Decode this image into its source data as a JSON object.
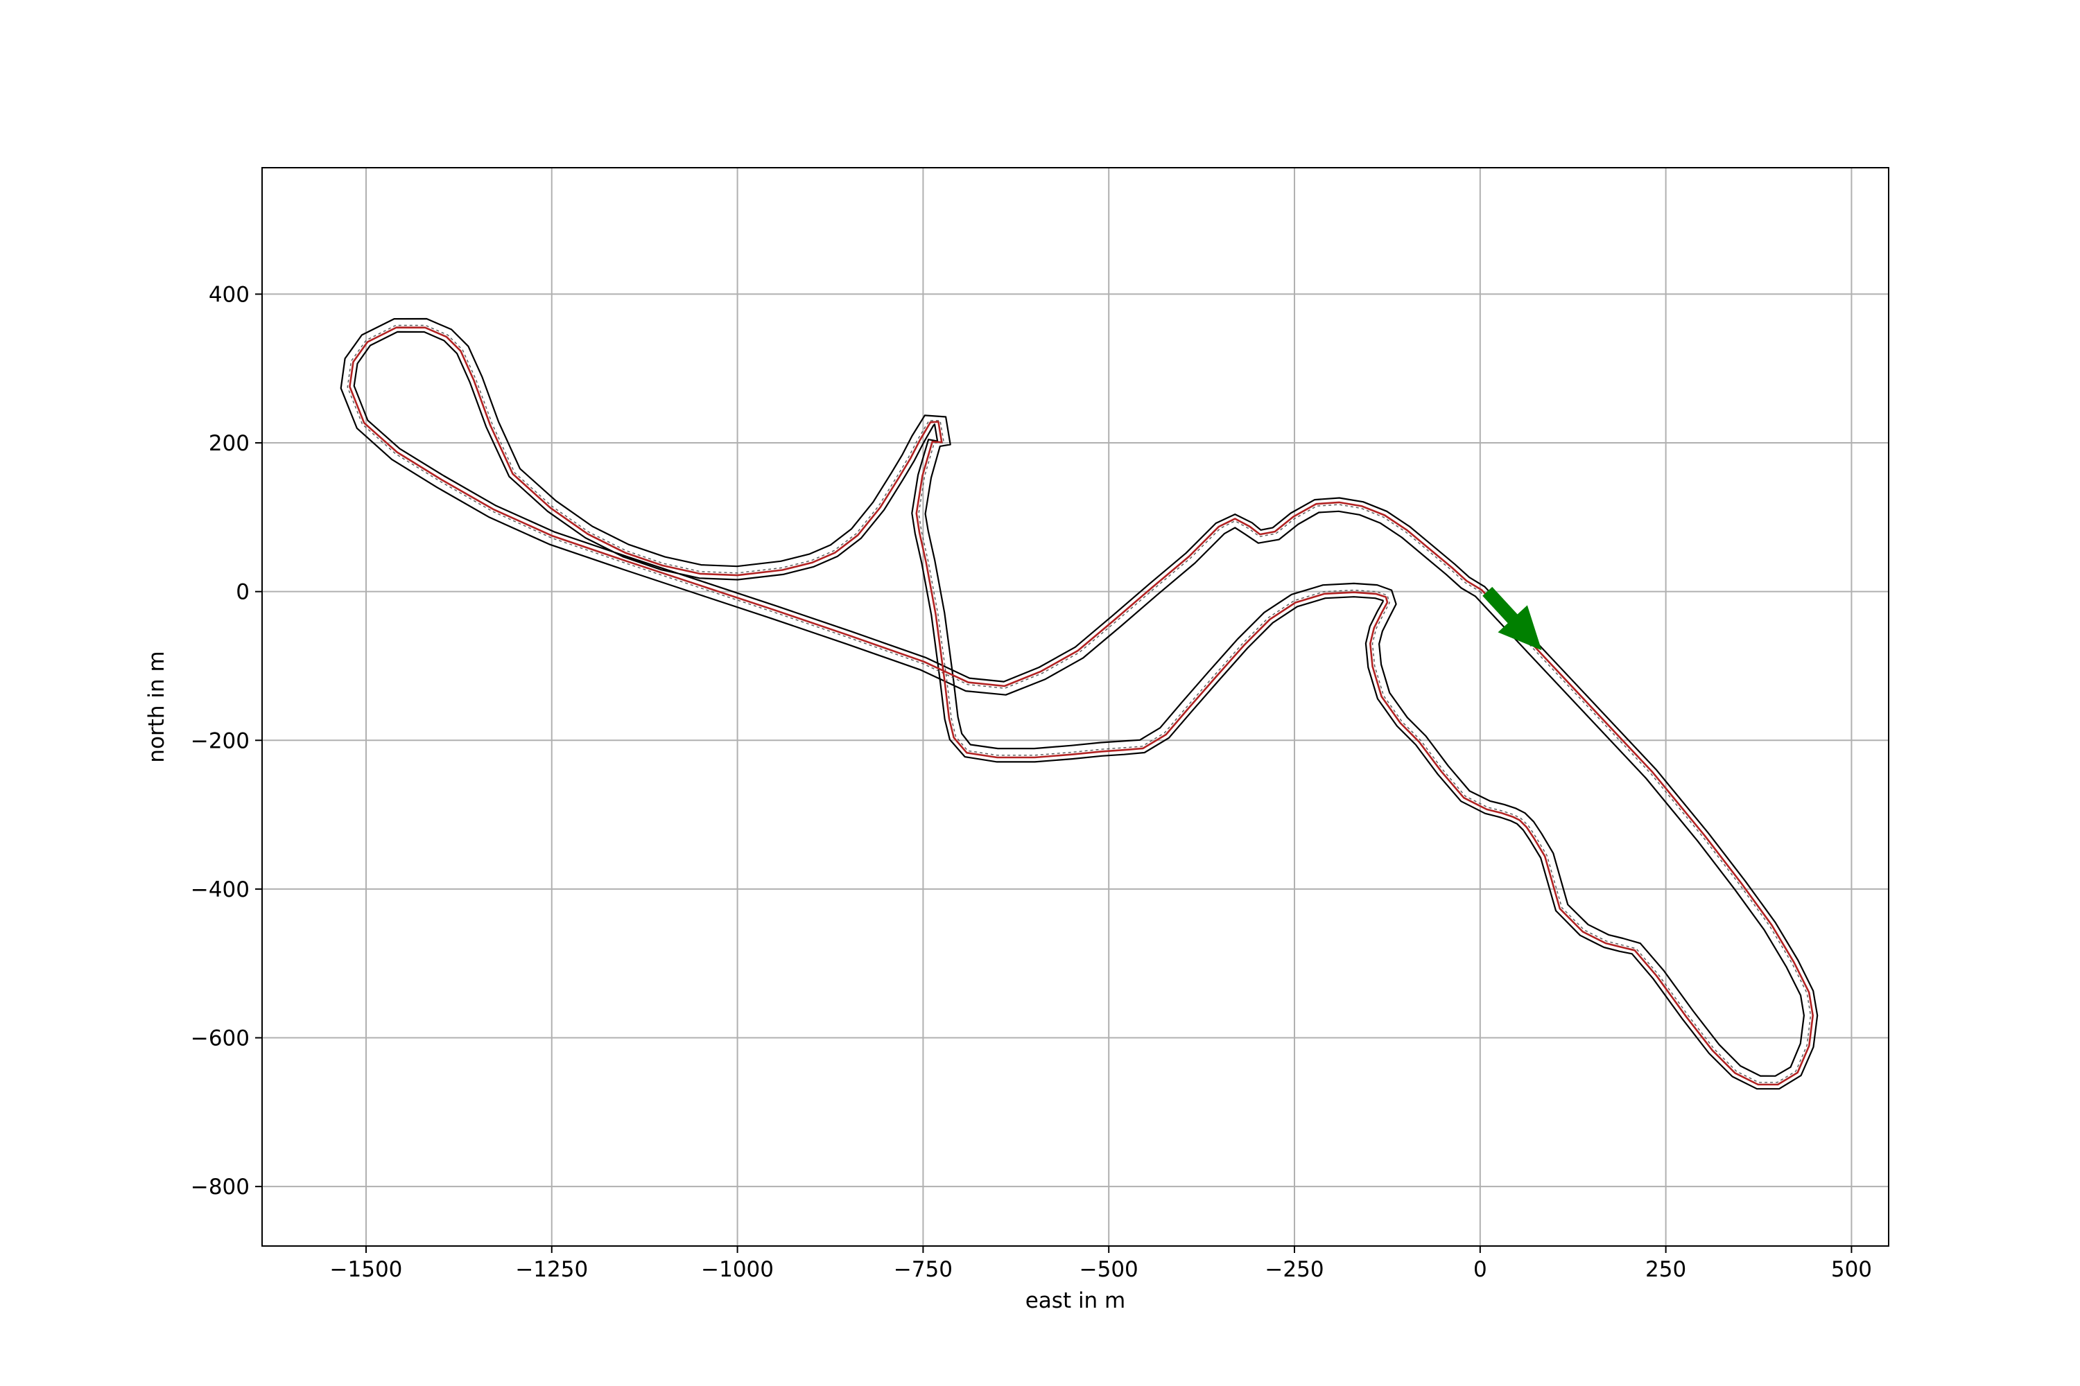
{
  "chart_data": {
    "type": "line",
    "title": "",
    "xlabel": "east in m",
    "ylabel": "north in m",
    "xlim": [
      -1640,
      550
    ],
    "ylim": [
      -880,
      570
    ],
    "grid": true,
    "aspect": "equal",
    "xticks": [
      {
        "value": -1500,
        "label": "−1500"
      },
      {
        "value": -1250,
        "label": "−1250"
      },
      {
        "value": -1000,
        "label": "−1000"
      },
      {
        "value": -750,
        "label": "−750"
      },
      {
        "value": -500,
        "label": "−500"
      },
      {
        "value": -250,
        "label": "−250"
      },
      {
        "value": 0,
        "label": "0"
      },
      {
        "value": 250,
        "label": "250"
      },
      {
        "value": 500,
        "label": "500"
      }
    ],
    "yticks": [
      {
        "value": 400,
        "label": "400"
      },
      {
        "value": 200,
        "label": "200"
      },
      {
        "value": 0,
        "label": "0"
      },
      {
        "value": -200,
        "label": "−200"
      },
      {
        "value": -400,
        "label": "−400"
      },
      {
        "value": -600,
        "label": "−600"
      },
      {
        "value": -800,
        "label": "−800"
      }
    ],
    "centerline": {
      "color": "#b22222",
      "closed": true,
      "x": [
        0,
        70,
        150,
        230,
        300,
        350,
        390,
        420,
        440,
        445,
        440,
        425,
        400,
        375,
        345,
        315,
        280,
        240,
        210,
        190,
        170,
        140,
        110,
        90,
        75,
        65,
        55,
        45,
        30,
        10,
        -20,
        -50,
        -80,
        -105,
        -130,
        -142,
        -145,
        -140,
        -130,
        -122,
        -125,
        -140,
        -170,
        -210,
        -250,
        -285,
        -320,
        -360,
        -395,
        -425,
        -455,
        -480,
        -510,
        -550,
        -600,
        -650,
        -690,
        -706,
        -712,
        -718,
        -730,
        -743,
        -752,
        -756,
        -748,
        -735,
        -722,
        -727,
        -742,
        -757,
        -770,
        -785,
        -810,
        -840,
        -870,
        -900,
        -940,
        -1000,
        -1050,
        -1100,
        -1150,
        -1200,
        -1250,
        -1300,
        -1330,
        -1352,
        -1370,
        -1390,
        -1420,
        -1460,
        -1500,
        -1520,
        -1525,
        -1505,
        -1460,
        -1400,
        -1330,
        -1250,
        -1150,
        -1050,
        -950,
        -850,
        -750,
        -690,
        -640,
        -590,
        -540,
        -490,
        -440,
        -390,
        -350,
        -330,
        -312,
        -297,
        -275,
        -250,
        -220,
        -190,
        -160,
        -130,
        -100,
        -70,
        -40,
        -20
      ],
      "y": [
        0,
        -75,
        -160,
        -245,
        -330,
        -395,
        -450,
        -500,
        -540,
        -570,
        -610,
        -645,
        -660,
        -660,
        -645,
        -615,
        -570,
        -515,
        -480,
        -475,
        -470,
        -455,
        -425,
        -355,
        -330,
        -315,
        -305,
        -300,
        -295,
        -290,
        -275,
        -240,
        -200,
        -175,
        -140,
        -100,
        -70,
        -50,
        -30,
        -15,
        -5,
        0,
        2,
        0,
        -12,
        -35,
        -70,
        -115,
        -155,
        -190,
        -208,
        -210,
        -212,
        -216,
        -220,
        -220,
        -214,
        -195,
        -170,
        -120,
        -30,
        40,
        80,
        105,
        155,
        200,
        200,
        230,
        230,
        205,
        180,
        155,
        115,
        78,
        55,
        42,
        32,
        25,
        27,
        38,
        55,
        80,
        115,
        160,
        225,
        285,
        325,
        345,
        358,
        358,
        338,
        310,
        275,
        225,
        185,
        148,
        108,
        72,
        38,
        5,
        -28,
        -62,
        -97,
        -125,
        -130,
        -110,
        -82,
        -40,
        3,
        45,
        85,
        95,
        85,
        74,
        78,
        98,
        115,
        117,
        112,
        100,
        80,
        55,
        30,
        12
      ]
    },
    "track_offset_m": 9,
    "heading_arrow": {
      "color": "#008000",
      "x": 10,
      "y": 0,
      "dx": 72,
      "dy": -78
    }
  }
}
